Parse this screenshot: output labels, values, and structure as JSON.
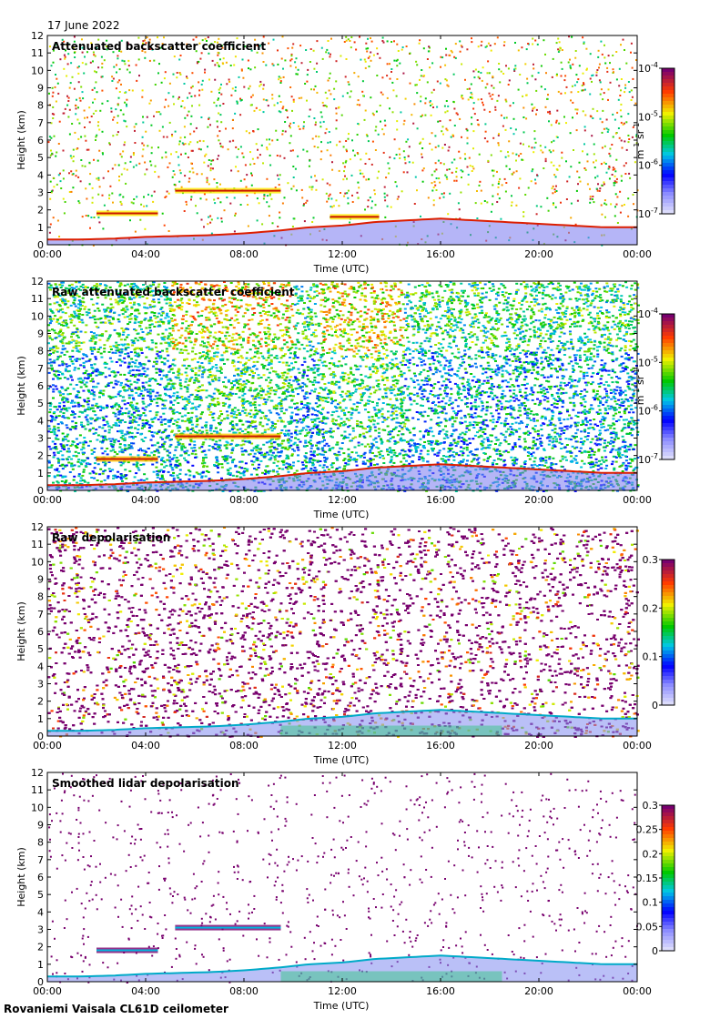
{
  "date": "17 June 2022",
  "footer": "Rovaniemi Vaisala CL61D ceilometer",
  "chart_data": [
    {
      "type": "heatmap",
      "title": "Attenuated backscatter coefficient",
      "xlabel": "Time (UTC)",
      "ylabel": "Height (km)",
      "x_ticks": [
        "00:00",
        "04:00",
        "08:00",
        "12:00",
        "16:00",
        "20:00",
        "00:00"
      ],
      "y_ticks": [
        "0",
        "1",
        "2",
        "3",
        "4",
        "5",
        "6",
        "7",
        "8",
        "9",
        "10",
        "11",
        "12"
      ],
      "ylim": [
        0,
        12
      ],
      "colorbar": {
        "scale": "log",
        "range": [
          1e-07,
          0.0001
        ],
        "ticks": [
          {
            "base": "10",
            "exp": "-7"
          },
          {
            "base": "10",
            "exp": "-6"
          },
          {
            "base": "10",
            "exp": "-5"
          },
          {
            "base": "10",
            "exp": "-4"
          }
        ],
        "unit": {
          "m": "m",
          "m_exp": "-1",
          "sr": "sr",
          "sr_exp": "-1"
        }
      },
      "background": "noise",
      "features": [
        {
          "kind": "boundary_layer",
          "heights_km": [
            0.3,
            0.3,
            0.35,
            0.45,
            0.5,
            0.55,
            0.65,
            0.8,
            1.0,
            1.1,
            1.3,
            1.4,
            1.5,
            1.4,
            1.3,
            1.2,
            1.1,
            1.0,
            1.0
          ]
        },
        {
          "kind": "cloud_layer",
          "start_h": 5.2,
          "end_h": 9.5,
          "height_km": 3.1
        },
        {
          "kind": "cloud_layer",
          "start_h": 2.0,
          "end_h": 4.5,
          "height_km": 1.8
        },
        {
          "kind": "cloud_layer",
          "start_h": 11.5,
          "end_h": 13.5,
          "height_km": 1.6
        }
      ]
    },
    {
      "type": "heatmap",
      "title": "Raw attenuated backscatter coefficient",
      "xlabel": "Time (UTC)",
      "ylabel": "Height (km)",
      "x_ticks": [
        "00:00",
        "04:00",
        "08:00",
        "12:00",
        "16:00",
        "20:00",
        "00:00"
      ],
      "y_ticks": [
        "0",
        "1",
        "2",
        "3",
        "4",
        "5",
        "6",
        "7",
        "8",
        "9",
        "10",
        "11",
        "12"
      ],
      "ylim": [
        0,
        12
      ],
      "colorbar": {
        "scale": "log",
        "range": [
          1e-07,
          0.0001
        ],
        "ticks": [
          {
            "base": "10",
            "exp": "-7"
          },
          {
            "base": "10",
            "exp": "-6"
          },
          {
            "base": "10",
            "exp": "-5"
          },
          {
            "base": "10",
            "exp": "-4"
          }
        ],
        "unit": {
          "m": "m",
          "m_exp": "-1",
          "sr": "sr",
          "sr_exp": "-1"
        }
      },
      "background": "dense",
      "features": [
        {
          "kind": "boundary_layer",
          "heights_km": [
            0.3,
            0.3,
            0.35,
            0.45,
            0.5,
            0.55,
            0.65,
            0.8,
            1.0,
            1.1,
            1.3,
            1.4,
            1.5,
            1.4,
            1.3,
            1.2,
            1.1,
            1.0,
            1.0
          ]
        },
        {
          "kind": "cloud_layer",
          "start_h": 5.2,
          "end_h": 9.5,
          "height_km": 3.1
        },
        {
          "kind": "cloud_layer",
          "start_h": 2.0,
          "end_h": 4.5,
          "height_km": 1.8
        }
      ]
    },
    {
      "type": "heatmap",
      "title": "Raw depolarisation",
      "xlabel": "Time (UTC)",
      "ylabel": "Height (km)",
      "x_ticks": [
        "00:00",
        "04:00",
        "08:00",
        "12:00",
        "16:00",
        "20:00",
        "00:00"
      ],
      "y_ticks": [
        "0",
        "1",
        "2",
        "3",
        "4",
        "5",
        "6",
        "7",
        "8",
        "9",
        "10",
        "11",
        "12"
      ],
      "ylim": [
        0,
        12
      ],
      "colorbar": {
        "scale": "linear",
        "range": [
          0,
          0.3
        ],
        "ticks": [
          "0",
          "0.1",
          "0.2",
          "0.3"
        ]
      },
      "background": "purple",
      "features": [
        {
          "kind": "boundary_layer",
          "heights_km": [
            0.3,
            0.3,
            0.35,
            0.45,
            0.5,
            0.55,
            0.65,
            0.8,
            1.0,
            1.1,
            1.3,
            1.4,
            1.5,
            1.4,
            1.3,
            1.2,
            1.1,
            1.0,
            1.0
          ]
        }
      ]
    },
    {
      "type": "heatmap",
      "title": "Smoothed lidar depolarisation",
      "xlabel": "Time (UTC)",
      "ylabel": "Height (km)",
      "x_ticks": [
        "00:00",
        "04:00",
        "08:00",
        "12:00",
        "16:00",
        "20:00",
        "00:00"
      ],
      "y_ticks": [
        "0",
        "1",
        "2",
        "3",
        "4",
        "5",
        "6",
        "7",
        "8",
        "9",
        "10",
        "11",
        "12"
      ],
      "ylim": [
        0,
        12
      ],
      "colorbar": {
        "scale": "linear",
        "range": [
          0,
          0.3
        ],
        "ticks": [
          "0",
          "0.05",
          "0.1",
          "0.15",
          "0.2",
          "0.25",
          "0.3"
        ]
      },
      "background": "sparse",
      "features": [
        {
          "kind": "boundary_layer",
          "heights_km": [
            0.3,
            0.3,
            0.35,
            0.45,
            0.5,
            0.55,
            0.65,
            0.8,
            1.0,
            1.1,
            1.3,
            1.4,
            1.5,
            1.4,
            1.3,
            1.2,
            1.1,
            1.0,
            1.0
          ]
        },
        {
          "kind": "cloud_layer",
          "start_h": 5.2,
          "end_h": 9.5,
          "height_km": 3.1
        },
        {
          "kind": "cloud_layer",
          "start_h": 2.0,
          "end_h": 4.5,
          "height_km": 1.8
        }
      ]
    }
  ]
}
